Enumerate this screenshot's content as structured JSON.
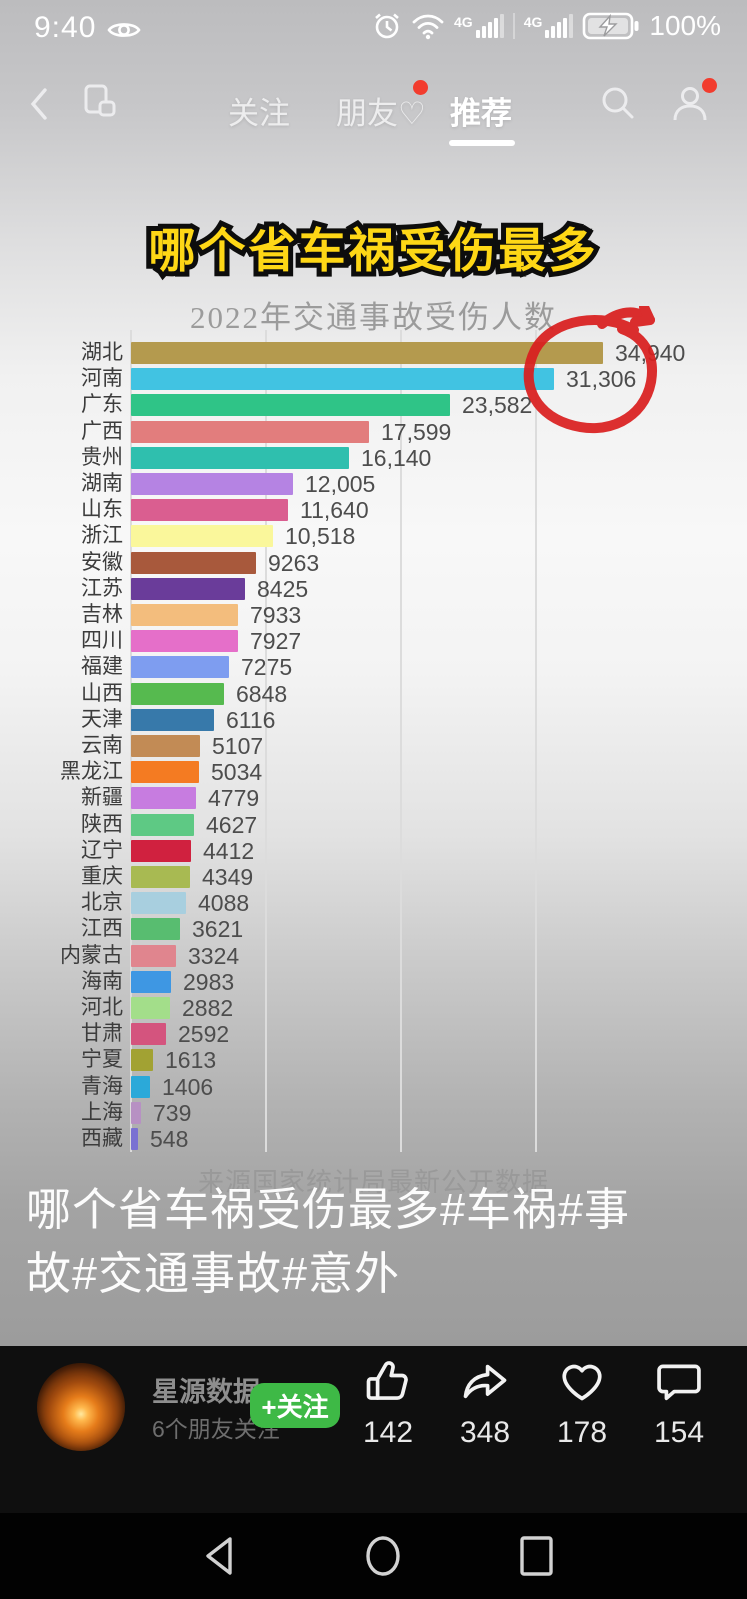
{
  "status_bar": {
    "time": "9:40",
    "battery_percent": "100%",
    "network": "4G",
    "icons": [
      "eye-comfort-icon",
      "alarm-icon",
      "wifi-icon",
      "signal-icon",
      "signal-icon",
      "battery-charging-icon"
    ]
  },
  "top_nav": {
    "tabs": [
      {
        "label": "关注",
        "active": false,
        "badge": false
      },
      {
        "label": "朋友♡",
        "active": false,
        "badge": true
      },
      {
        "label": "推荐",
        "active": true,
        "badge": false
      }
    ]
  },
  "video_overlay": {
    "headline": "哪个省车祸受伤最多",
    "caption_line1": "哪个省车祸受伤最多#车祸#事",
    "caption_line2": "故#交通事故#意外"
  },
  "chart_data": {
    "type": "bar",
    "orientation": "horizontal",
    "title": "2022年交通事故受伤人数",
    "source_note": "来源国家统计局最新公开数据",
    "xlim": [
      0,
      35000
    ],
    "gridlines": [
      0,
      10000,
      20000,
      30000
    ],
    "legend": "none",
    "categories": [
      "湖北",
      "河南",
      "广东",
      "广西",
      "贵州",
      "湖南",
      "山东",
      "浙江",
      "安徽",
      "江苏",
      "吉林",
      "四川",
      "福建",
      "山西",
      "天津",
      "云南",
      "黑龙江",
      "新疆",
      "陕西",
      "辽宁",
      "重庆",
      "北京",
      "江西",
      "内蒙古",
      "海南",
      "河北",
      "甘肃",
      "宁夏",
      "青海",
      "上海",
      "西藏"
    ],
    "values": [
      34940,
      31306,
      23582,
      17599,
      16140,
      12005,
      11640,
      10518,
      9263,
      8425,
      7933,
      7927,
      7275,
      6848,
      6116,
      5107,
      5034,
      4779,
      4627,
      4412,
      4349,
      4088,
      3621,
      3324,
      2983,
      2882,
      2592,
      1613,
      1406,
      739,
      548
    ],
    "value_labels": [
      "34,940",
      "31,306",
      "23,582",
      "17,599",
      "16,140",
      "12,005",
      "11,640",
      "10,518",
      "9263",
      "8425",
      "7933",
      "7927",
      "7275",
      "6848",
      "6116",
      "5107",
      "5034",
      "4779",
      "4627",
      "4412",
      "4349",
      "4088",
      "3621",
      "3324",
      "2983",
      "2882",
      "2592",
      "1613",
      "1406",
      "739",
      "548"
    ],
    "bar_colors": [
      "#b49a4e",
      "#41c3e2",
      "#2fc487",
      "#e27d7d",
      "#2fbfae",
      "#b583e3",
      "#da5e90",
      "#faf79b",
      "#a8593c",
      "#6a3c9a",
      "#f3bd7d",
      "#e56fc9",
      "#7e9df0",
      "#56ba4f",
      "#3779aa",
      "#c28b55",
      "#f47b22",
      "#c77ce0",
      "#5ec984",
      "#d0213f",
      "#a8ba52",
      "#a8cfdf",
      "#58bd70",
      "#e0858e",
      "#3e97e3",
      "#a3de8a",
      "#d4547e",
      "#a2a233",
      "#2ba9d9",
      "#b791c3",
      "#7a71d2"
    ],
    "annotation": {
      "type": "hand-drawn-circle",
      "target": "河南 31,306",
      "color": "#d91f1f"
    }
  },
  "footer": {
    "username": "星源数据",
    "friends_note": "6个朋友关注",
    "follow_button": "+关注",
    "follow_color": "#3eb946",
    "actions": [
      {
        "name": "like",
        "count": "142"
      },
      {
        "name": "forward",
        "count": "348"
      },
      {
        "name": "favorite",
        "count": "178"
      },
      {
        "name": "comment",
        "count": "154"
      }
    ]
  }
}
